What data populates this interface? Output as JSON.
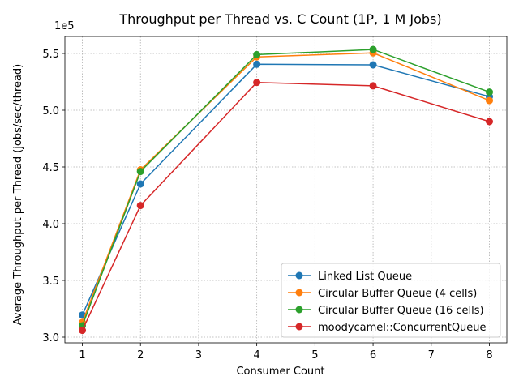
{
  "chart_data": {
    "type": "line",
    "title": "Throughput per Thread vs. C Count (1P, 1 M Jobs)",
    "xlabel": "Consumer Count",
    "ylabel": "Average Throughput per Thread (jobs/sec/thread)",
    "y_offset_label": "1e5",
    "y_scale": 100000,
    "xlim": [
      0.7,
      8.3
    ],
    "ylim": [
      295000,
      565000
    ],
    "x_ticks": [
      1,
      2,
      3,
      4,
      5,
      6,
      7,
      8
    ],
    "y_ticks": [
      300000,
      350000,
      400000,
      450000,
      500000,
      550000
    ],
    "y_tick_labels": [
      "3.0",
      "3.5",
      "4.0",
      "4.5",
      "5.0",
      "5.5"
    ],
    "grid": true,
    "legend_position": "lower-right",
    "x": [
      1,
      2,
      4,
      6,
      8
    ],
    "series": [
      {
        "name": "Linked List Queue",
        "color": "#1f77b4",
        "values": [
          319500,
          435000,
          540500,
          540000,
          512000
        ]
      },
      {
        "name": "Circular Buffer Queue (4 cells)",
        "color": "#ff7f0e",
        "values": [
          313000,
          447500,
          547000,
          550500,
          508500
        ]
      },
      {
        "name": "Circular Buffer Queue (16 cells)",
        "color": "#2ca02c",
        "values": [
          310000,
          446000,
          549000,
          553500,
          516000
        ]
      },
      {
        "name": "moodycamel::ConcurrentQueue",
        "color": "#d62728",
        "values": [
          306000,
          416000,
          524500,
          521500,
          490000
        ]
      }
    ]
  }
}
